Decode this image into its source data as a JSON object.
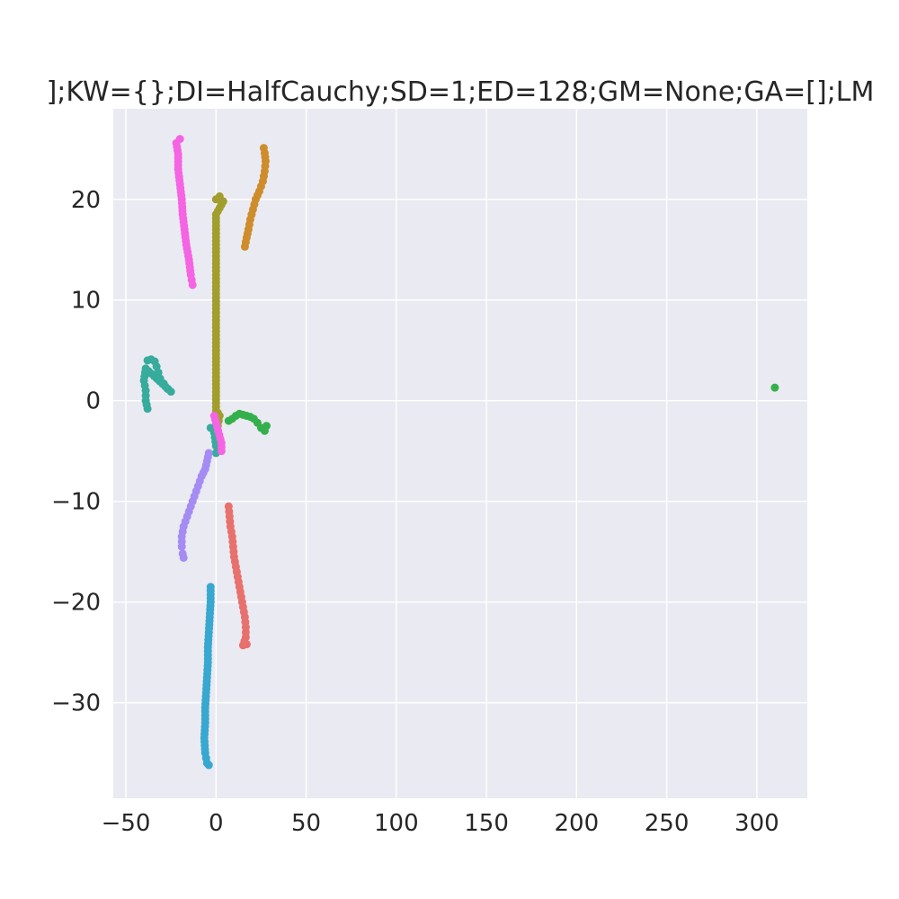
{
  "chart_data": {
    "type": "scatter",
    "title": "];KW={};DI=HalfCauchy;SD=1;ED=128;GM=None;GA=[];LM",
    "xlabel": "",
    "ylabel": "",
    "xlim": [
      -57,
      328
    ],
    "ylim": [
      -39.5,
      29
    ],
    "x_ticks": [
      -50,
      0,
      50,
      100,
      150,
      200,
      250,
      300
    ],
    "x_tick_labels": [
      "−50",
      "0",
      "50",
      "100",
      "150",
      "200",
      "250",
      "300"
    ],
    "y_ticks": [
      -30,
      -20,
      -10,
      0,
      10,
      20
    ],
    "y_tick_labels": [
      "−30",
      "−20",
      "−10",
      "0",
      "10",
      "20"
    ],
    "grid": true,
    "legend": "none",
    "background_color": "#eaeaf2",
    "grid_color": "#ffffff",
    "series": [
      {
        "color": "#e8706d",
        "points": [
          [
            7,
            -10.5
          ],
          [
            7.5,
            -11.5
          ],
          [
            8,
            -12.5
          ],
          [
            9,
            -13.5
          ],
          [
            9.5,
            -14.5
          ],
          [
            10,
            -15.5
          ],
          [
            11,
            -16.5
          ],
          [
            12,
            -17.5
          ],
          [
            13,
            -18.5
          ],
          [
            14,
            -19.5
          ],
          [
            15,
            -20.5
          ],
          [
            16,
            -21.5
          ],
          [
            16.5,
            -22.5
          ],
          [
            16.5,
            -23.5
          ],
          [
            15,
            -24.3
          ],
          [
            17,
            -24.2
          ]
        ]
      },
      {
        "color": "#ce8c2b",
        "points": [
          [
            16,
            15.3
          ],
          [
            17,
            16.2
          ],
          [
            18,
            17
          ],
          [
            19,
            18
          ],
          [
            20.5,
            19
          ],
          [
            22,
            20
          ],
          [
            24,
            20.8
          ],
          [
            26,
            21.8
          ],
          [
            27,
            22.8
          ],
          [
            27.5,
            23.8
          ],
          [
            27,
            24.6
          ],
          [
            26.5,
            25.1
          ]
        ]
      },
      {
        "color": "#a19e2d",
        "points": [
          [
            0,
            20
          ],
          [
            2,
            20.3
          ],
          [
            4,
            19.8
          ],
          [
            0,
            18.5
          ],
          [
            0,
            17
          ],
          [
            0,
            15.5
          ],
          [
            0,
            14
          ],
          [
            0,
            12.5
          ],
          [
            0,
            11
          ],
          [
            0,
            9.5
          ],
          [
            0,
            8
          ],
          [
            0,
            6.5
          ],
          [
            0,
            5
          ],
          [
            0,
            3.5
          ],
          [
            0,
            2
          ],
          [
            0,
            0.5
          ],
          [
            0,
            -1
          ],
          [
            1,
            -1.2
          ],
          [
            2,
            -1.5
          ],
          [
            1,
            -2.5
          ],
          [
            0,
            -3.5
          ]
        ]
      },
      {
        "color": "#33b04b",
        "points": [
          [
            7,
            -2
          ],
          [
            9,
            -1.8
          ],
          [
            11,
            -1.5
          ],
          [
            13,
            -1.3
          ],
          [
            15,
            -1.4
          ],
          [
            17,
            -1.5
          ],
          [
            19,
            -1.6
          ],
          [
            21,
            -1.8
          ],
          [
            23,
            -2.2
          ],
          [
            25,
            -2.7
          ],
          [
            27,
            -3
          ],
          [
            28,
            -2.5
          ],
          [
            310,
            1.3
          ]
        ]
      },
      {
        "color": "#37ab9c",
        "points": [
          [
            -38,
            4
          ],
          [
            -36,
            4.1
          ],
          [
            -34,
            3.9
          ],
          [
            -33,
            3.4
          ],
          [
            -32,
            2.8
          ],
          [
            -31,
            2.2
          ],
          [
            -29,
            1.7
          ],
          [
            -27,
            1.2
          ],
          [
            -25,
            0.9
          ],
          [
            -39,
            3.2
          ],
          [
            -40,
            2
          ],
          [
            -39,
            1
          ],
          [
            -39,
            0
          ],
          [
            -38,
            -0.8
          ],
          [
            -3,
            -2.7
          ],
          [
            -1,
            -3.2
          ],
          [
            0,
            -4.5
          ],
          [
            0,
            -5.2
          ]
        ]
      },
      {
        "color": "#38a8d0",
        "points": [
          [
            -3,
            -18.5
          ],
          [
            -3,
            -20
          ],
          [
            -3.5,
            -21.5
          ],
          [
            -4,
            -23
          ],
          [
            -4.5,
            -24.5
          ],
          [
            -4.5,
            -26
          ],
          [
            -5,
            -27.5
          ],
          [
            -5.5,
            -29
          ],
          [
            -6,
            -30.5
          ],
          [
            -6,
            -32
          ],
          [
            -6.5,
            -33.5
          ],
          [
            -6,
            -35
          ],
          [
            -5,
            -36
          ],
          [
            -4,
            -36.2
          ]
        ]
      },
      {
        "color": "#a48cf4",
        "points": [
          [
            -4,
            -5.2
          ],
          [
            -5,
            -6
          ],
          [
            -6,
            -6.8
          ],
          [
            -8,
            -7.5
          ],
          [
            -10,
            -8.5
          ],
          [
            -12,
            -9.5
          ],
          [
            -14,
            -10.5
          ],
          [
            -16,
            -11.5
          ],
          [
            -18,
            -12.5
          ],
          [
            -19,
            -13.5
          ],
          [
            -19,
            -14.5
          ],
          [
            -18.5,
            -15.2
          ],
          [
            -18,
            -15.6
          ]
        ]
      },
      {
        "color": "#f564e3",
        "points": [
          [
            -20,
            26
          ],
          [
            -22,
            25.6
          ],
          [
            -21,
            24.5
          ],
          [
            -21,
            23
          ],
          [
            -20,
            21.5
          ],
          [
            -19,
            20
          ],
          [
            -18.5,
            18.5
          ],
          [
            -17.5,
            17
          ],
          [
            -16.5,
            15.5
          ],
          [
            -15,
            14
          ],
          [
            -14,
            12.5
          ],
          [
            -13,
            11.5
          ],
          [
            -1,
            -1.5
          ],
          [
            0,
            -2.2
          ],
          [
            3,
            -4.2
          ],
          [
            3,
            -5
          ]
        ]
      }
    ]
  }
}
